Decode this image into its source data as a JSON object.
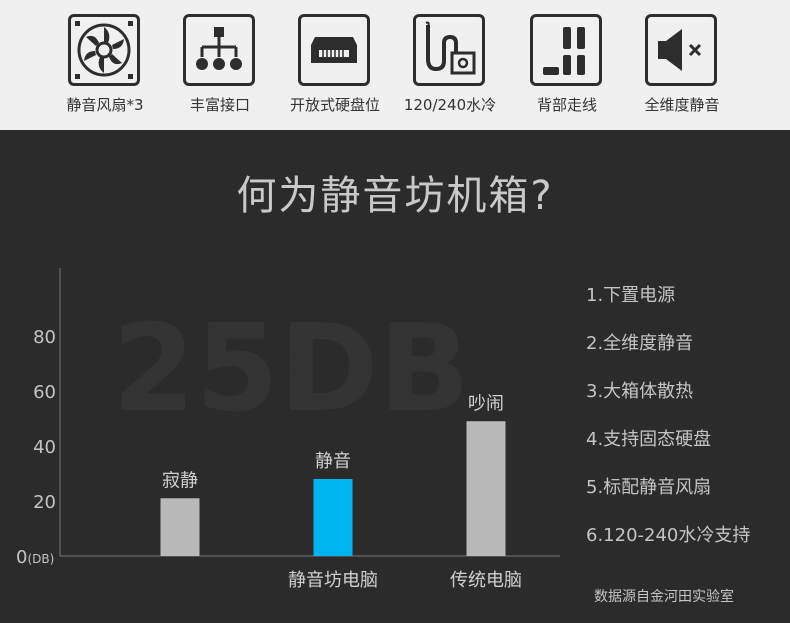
{
  "features": [
    {
      "label": "静音风扇*3",
      "icon": "fan-icon"
    },
    {
      "label": "丰富接口",
      "icon": "network-tree-icon"
    },
    {
      "label": "开放式硬盘位",
      "icon": "hard-drive-icon"
    },
    {
      "label": "120/240水冷",
      "icon": "water-cooling-icon"
    },
    {
      "label": "背部走线",
      "icon": "cable-routing-icon"
    },
    {
      "label": "全维度静音",
      "icon": "speaker-mute-icon"
    }
  ],
  "headline": "何为静音坊机箱?",
  "watermark": "25DB",
  "colors": {
    "quiet_bar": "#b9b9b9",
    "highlight_bar": "#00b4f0",
    "loud_bar": "#b9b9b9",
    "background": "#2b2b2b",
    "strip": "#f0f0f0"
  },
  "chart_data": {
    "type": "bar",
    "unit": "(DB)",
    "yticks": [
      "0",
      "20",
      "40",
      "60",
      "80"
    ],
    "ylim": [
      0,
      100
    ],
    "grid": false,
    "bars": [
      {
        "value": 21,
        "label": "寂静",
        "category": ""
      },
      {
        "value": 28,
        "label": "静音",
        "category": "静音坊电脑"
      },
      {
        "value": 49,
        "label": "吵闹",
        "category": "传统电脑"
      }
    ]
  },
  "feature_list": [
    "1.下置电源",
    "2.全维度静音",
    "3.大箱体散热",
    "4.支持固态硬盘",
    "5.标配静音风扇",
    "6.120-240水冷支持"
  ],
  "source": "数据源自金河田实验室"
}
